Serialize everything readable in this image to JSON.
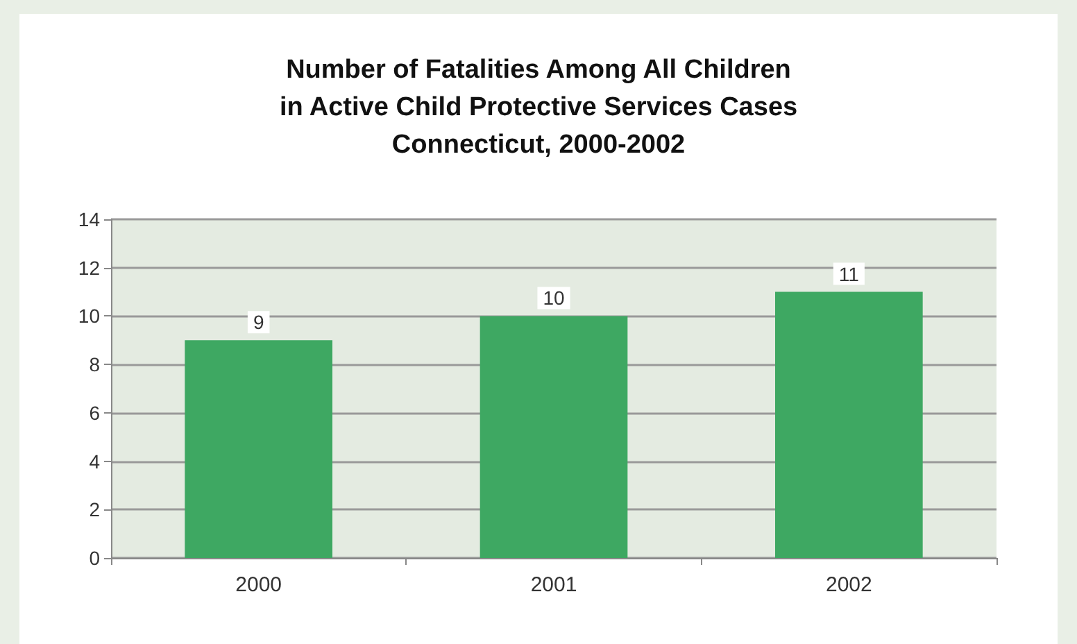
{
  "chart_data": {
    "type": "bar",
    "title": "Number of Fatalities Among All Children\nin Active Child Protective Services Cases\nConnecticut, 2000-2002",
    "categories": [
      "2000",
      "2001",
      "2002"
    ],
    "values": [
      9,
      10,
      11
    ],
    "color": "#3ea862",
    "ylim": [
      0,
      14
    ],
    "yticks": [
      0,
      2,
      4,
      6,
      8,
      10,
      12,
      14
    ],
    "grid": "y",
    "data_labels": true
  }
}
